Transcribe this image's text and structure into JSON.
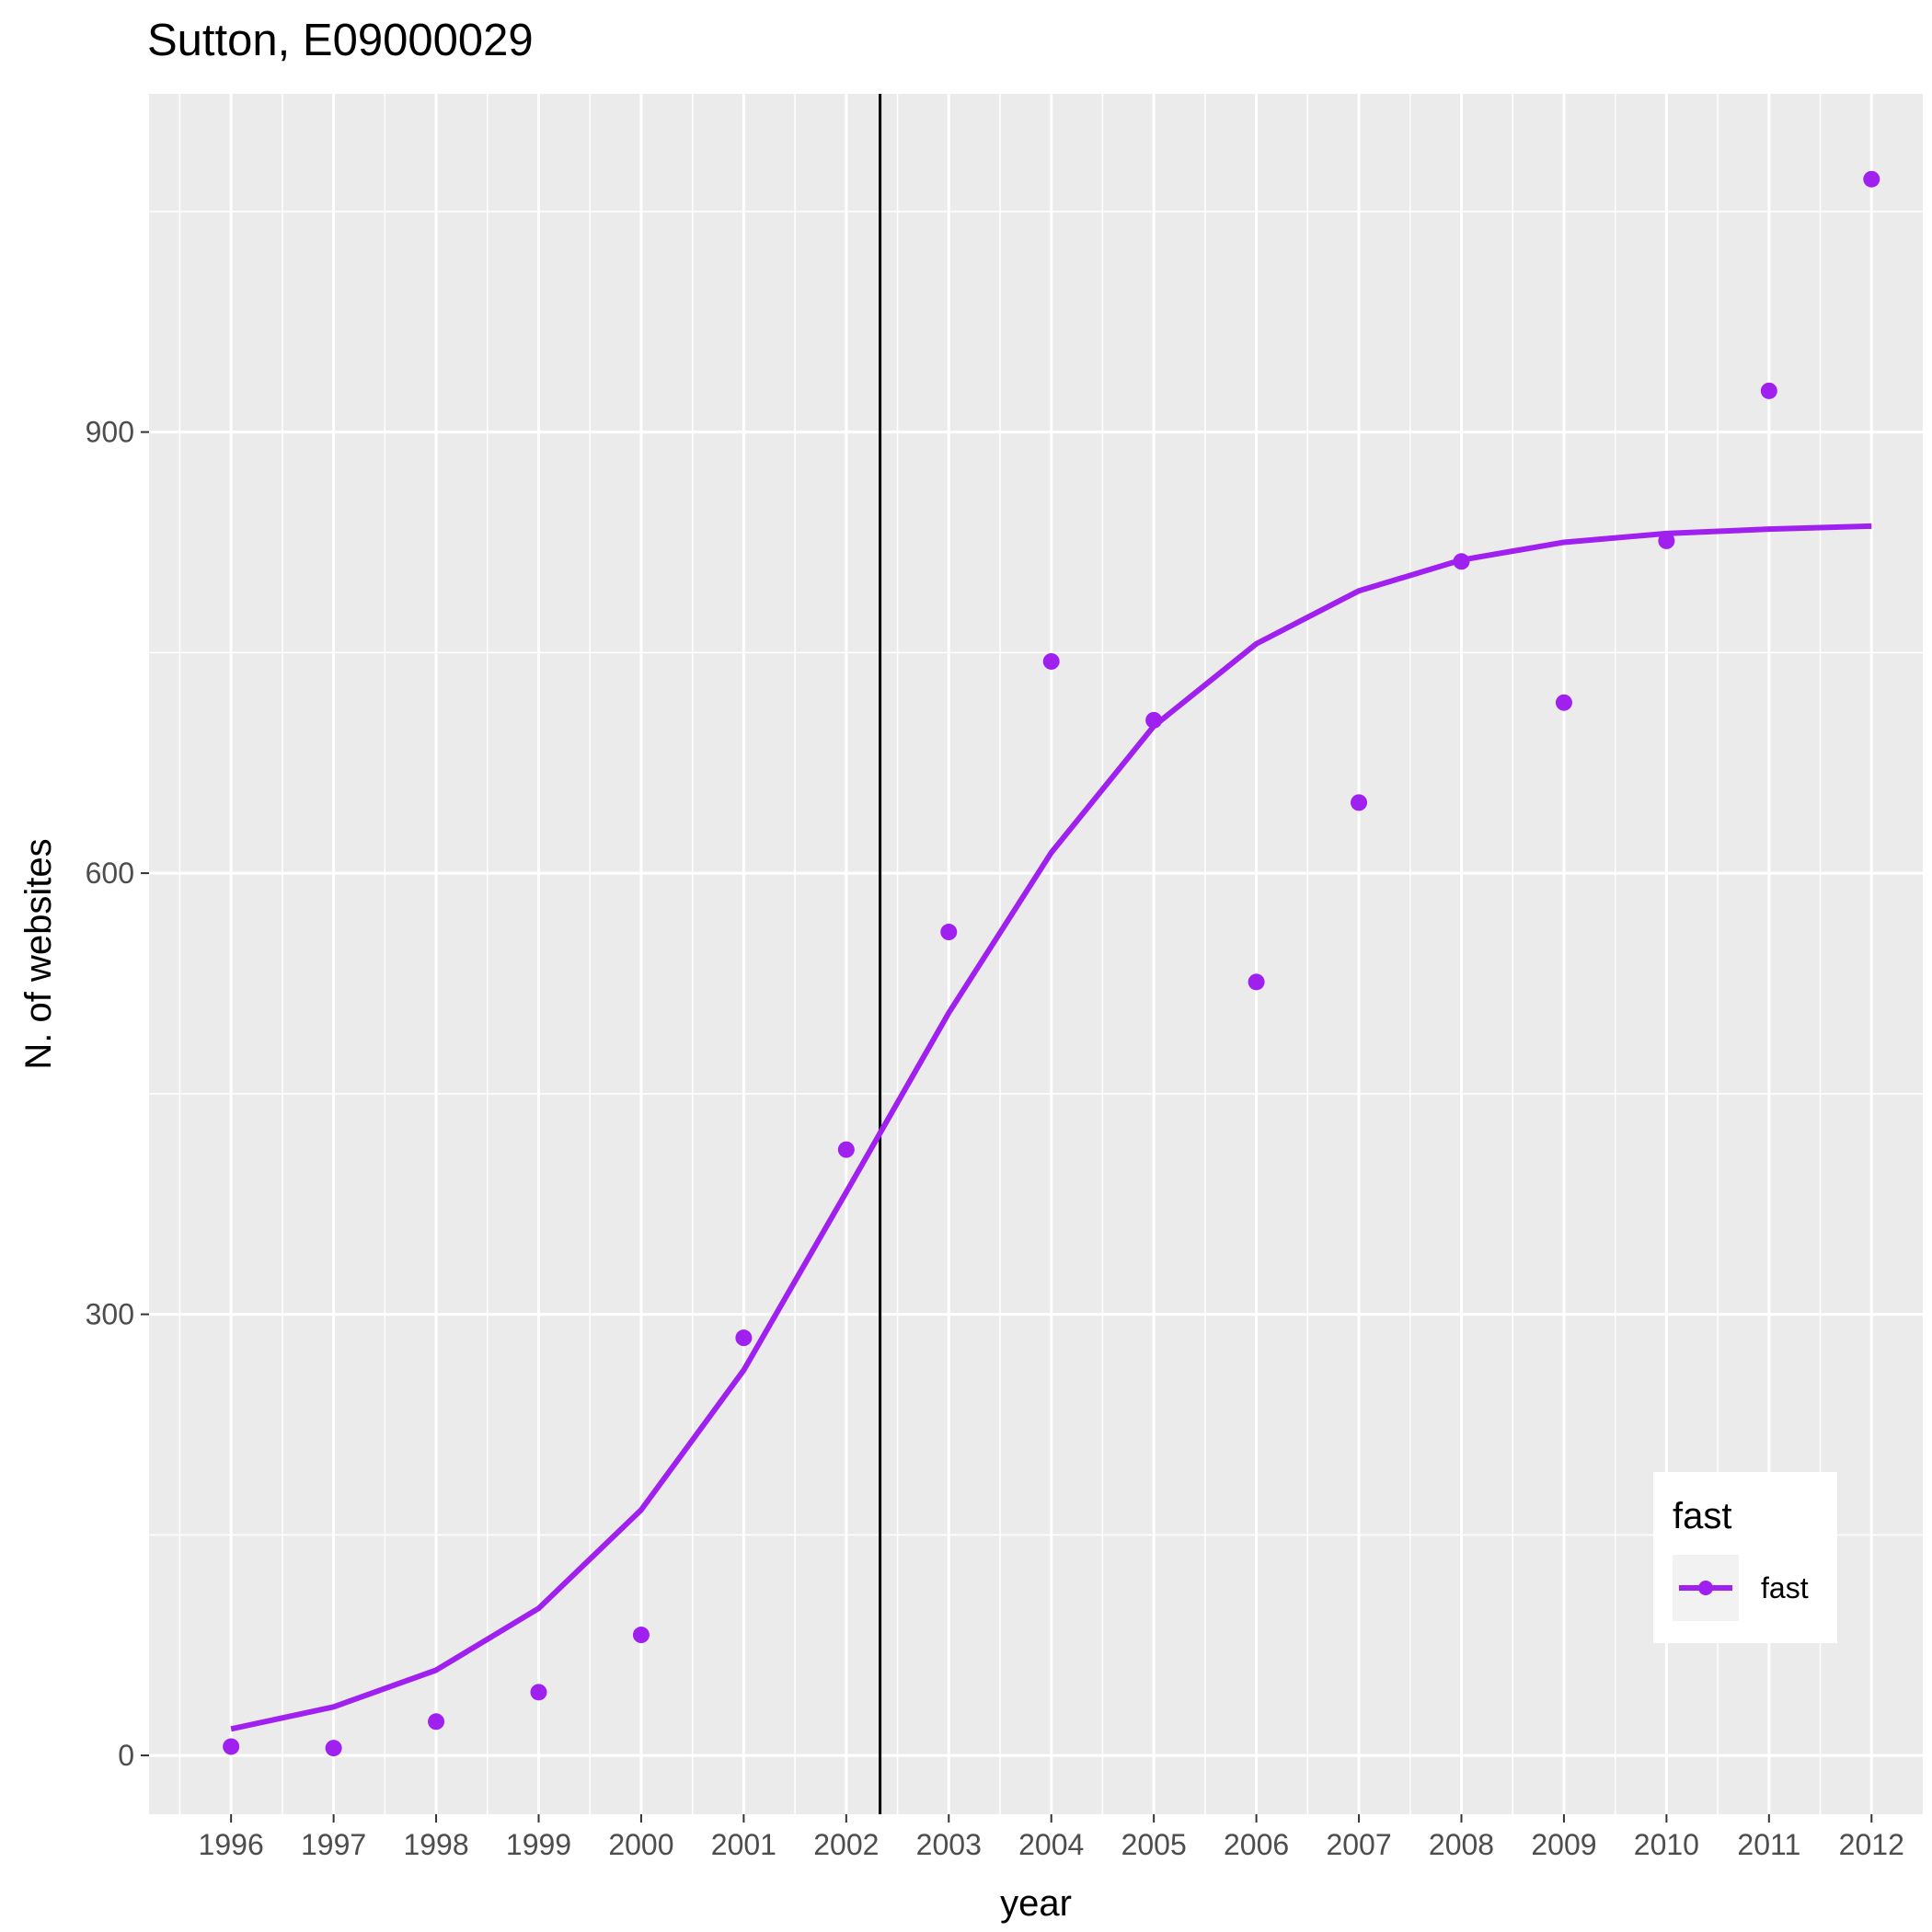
{
  "chart_data": {
    "type": "line",
    "title": "Sutton, E09000029",
    "xlabel": "year",
    "ylabel": "N. of websites",
    "x_ticks": [
      "1996",
      "1997",
      "1998",
      "1999",
      "2000",
      "2001",
      "2002",
      "2003",
      "2004",
      "2005",
      "2006",
      "2007",
      "2008",
      "2009",
      "2010",
      "2011",
      "2012"
    ],
    "y_ticks": [
      "0",
      "300",
      "600",
      "900"
    ],
    "xlim": [
      1995.2,
      2012.5
    ],
    "ylim": [
      -40,
      1130
    ],
    "grid": true,
    "vline_x": 2002.33,
    "legend": {
      "title": "fast",
      "position": "bottom-right",
      "entries": [
        "fast"
      ]
    },
    "colors": {
      "series": "#a020f0",
      "panel": "#ebebeb",
      "grid": "#ffffff",
      "vline": "#000000"
    },
    "series": [
      {
        "name": "fast",
        "points": {
          "x": [
            1996,
            1997,
            1998,
            1999,
            2000,
            2001,
            2002,
            2003,
            2004,
            2005,
            2006,
            2007,
            2008,
            2009,
            2010,
            2011,
            2012
          ],
          "y": [
            6,
            5,
            23,
            43,
            82,
            284,
            412,
            560,
            744,
            704,
            526,
            648,
            812,
            716,
            826,
            928,
            1072
          ]
        },
        "fit": {
          "x": [
            1996,
            1997,
            1998,
            1999,
            2000,
            2001,
            2002,
            2003,
            2004,
            2005,
            2006,
            2007,
            2008,
            2009,
            2010,
            2011,
            2012
          ],
          "y": [
            18,
            33,
            58,
            100,
            167,
            262,
            383,
            505,
            614,
            700,
            756,
            792,
            813,
            825,
            831,
            834,
            836
          ]
        }
      }
    ]
  }
}
